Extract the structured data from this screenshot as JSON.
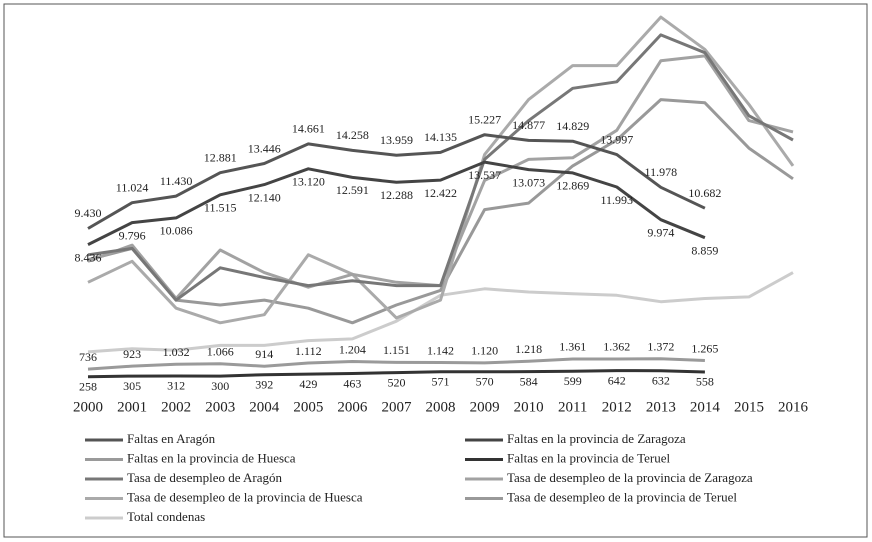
{
  "chart_data": {
    "type": "line",
    "categories": [
      "2000",
      "2001",
      "2002",
      "2003",
      "2004",
      "2005",
      "2006",
      "2007",
      "2008",
      "2009",
      "2010",
      "2011",
      "2012",
      "2013",
      "2014",
      "2015",
      "2016"
    ],
    "ylim": [
      0,
      23000
    ],
    "series": [
      {
        "name": "Faltas en Aragón",
        "color": "#555555",
        "values": [
          9430,
          11024,
          11430,
          12881,
          13446,
          14661,
          14258,
          13959,
          14135,
          15227,
          14877,
          14829,
          13997,
          11978,
          10682,
          null,
          null
        ],
        "value_labels": [
          "9.430",
          "11.024",
          "11.430",
          "12.881",
          "13.446",
          "14.661",
          "14.258",
          "13.959",
          "14.135",
          "15.227",
          "14.877",
          "14.829",
          "13.997",
          "11.978",
          "10.682",
          null,
          null
        ]
      },
      {
        "name": "Faltas en la provincia de Zaragoza",
        "color": "#444444",
        "values": [
          8436,
          9796,
          10086,
          11515,
          12140,
          13120,
          12591,
          12288,
          12422,
          13537,
          13073,
          12869,
          11993,
          9974,
          8859,
          null,
          null
        ],
        "value_labels": [
          "8.436",
          "9.796",
          "10.086",
          "11.515",
          "12.140",
          "13.120",
          "12.591",
          "12.288",
          "12.422",
          "13.537",
          "13.073",
          "12.869",
          "11.993",
          "9.974",
          "8.859",
          null,
          null
        ]
      },
      {
        "name": "Faltas en la provincia de Huesca",
        "color": "#9a9a9a",
        "values": [
          736,
          923,
          1032,
          1066,
          914,
          1112,
          1204,
          1151,
          1142,
          1120,
          1218,
          1361,
          1362,
          1372,
          1265,
          null,
          null
        ],
        "value_labels": [
          "736",
          "923",
          "1.032",
          "1.066",
          "914",
          "1.112",
          "1.204",
          "1.151",
          "1.142",
          "1.120",
          "1.218",
          "1.361",
          "1.362",
          "1.372",
          "1.265",
          null,
          null
        ]
      },
      {
        "name": "Faltas en la provincia de Teruel",
        "color": "#333333",
        "values": [
          258,
          305,
          312,
          300,
          392,
          429,
          463,
          520,
          571,
          570,
          584,
          599,
          642,
          632,
          558,
          null,
          null
        ],
        "value_labels": [
          "258",
          "305",
          "312",
          "300",
          "392",
          "429",
          "463",
          "520",
          "571",
          "570",
          "584",
          "599",
          "642",
          "632",
          "558",
          null,
          null
        ]
      },
      {
        "name": "Tasa de desempleo de Aragón",
        "color": "#777777",
        "values": [
          7800,
          8200,
          5000,
          7000,
          6400,
          5900,
          6200,
          5900,
          5900,
          13700,
          16100,
          18100,
          18500,
          21400,
          20300,
          16400,
          14900
        ]
      },
      {
        "name": "Tasa de desempleo de la provincia de Zaragoza",
        "color": "#a2a2a2",
        "values": [
          7400,
          8400,
          5100,
          8100,
          6700,
          5800,
          6600,
          6100,
          5900,
          12400,
          13700,
          13800,
          15500,
          19800,
          20100,
          16100,
          15400
        ]
      },
      {
        "name": "Tasa de desempleo de la provincia de Huesca",
        "color": "#aaaaaa",
        "values": [
          6100,
          7400,
          4500,
          3600,
          4100,
          7800,
          6600,
          3900,
          5000,
          14000,
          17400,
          19500,
          19500,
          22500,
          20500,
          17100,
          13300
        ]
      },
      {
        "name": "Tasa de desempleo de la provincia de Teruel",
        "color": "#999999",
        "values": [
          7500,
          8200,
          5000,
          4700,
          5000,
          4500,
          3600,
          4700,
          5600,
          10600,
          11000,
          13300,
          14900,
          17400,
          17200,
          14400,
          12500
        ]
      },
      {
        "name": "Total condenas",
        "color": "#cccccc",
        "values": [
          1800,
          2000,
          1900,
          2200,
          2200,
          2500,
          2600,
          3700,
          5300,
          5700,
          5500,
          5400,
          5300,
          4900,
          5100,
          5200,
          6700
        ]
      }
    ]
  }
}
